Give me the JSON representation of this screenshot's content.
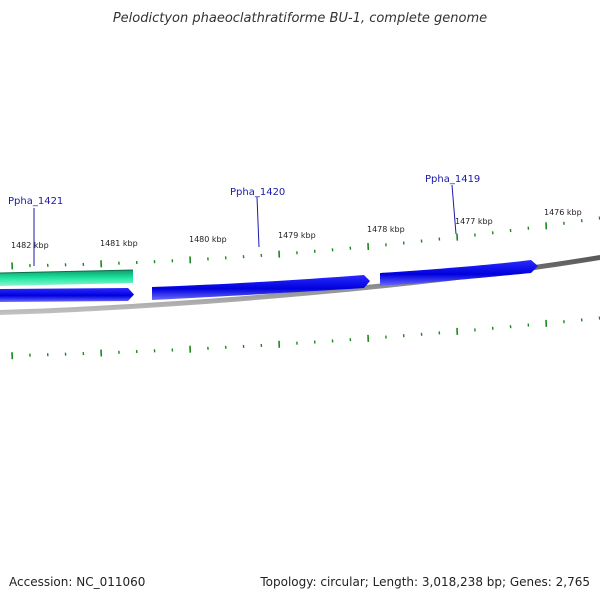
{
  "title": "Pelodictyon phaeoclathratiforme BU-1, complete genome",
  "footer": {
    "accession": "Accession: NC_011060",
    "summary": "Topology: circular; Length: 3,018,238 bp; Genes: 2,765"
  },
  "ticks": [
    {
      "label": "1482 kbp"
    },
    {
      "label": "1481 kbp"
    },
    {
      "label": "1480 kbp"
    },
    {
      "label": "1479 kbp"
    },
    {
      "label": "1478 kbp"
    },
    {
      "label": "1477 kbp"
    },
    {
      "label": "1476 kbp"
    }
  ],
  "genes": [
    {
      "label": "Ppha_1421"
    },
    {
      "label": "Ppha_1420"
    },
    {
      "label": "Ppha_1419"
    }
  ],
  "colors": {
    "gene_blue": "#0000dd",
    "gene_label": "#1a1aa8",
    "rna_green": "#1fe6a0",
    "backbone": "#808080",
    "tick_green": "#1a8a1a"
  }
}
